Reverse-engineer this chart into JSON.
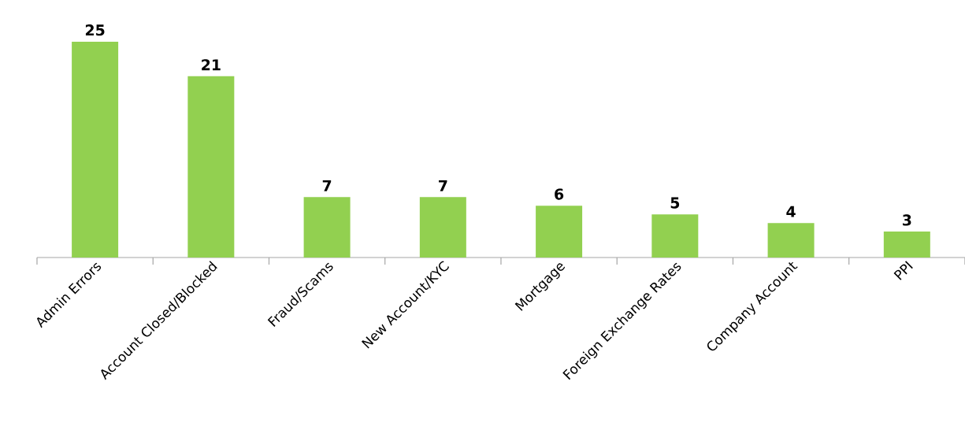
{
  "chart_data": {
    "type": "bar",
    "categories": [
      "Admin Errors",
      "Account Closed/Blocked",
      "Fraud/Scams",
      "New Account/KYC",
      "Mortgage",
      "Foreign Exchange Rates",
      "Company Account",
      "PPI"
    ],
    "values": [
      25,
      21,
      7,
      7,
      6,
      5,
      4,
      3
    ],
    "color": "#92d050",
    "data_labels": true
  }
}
